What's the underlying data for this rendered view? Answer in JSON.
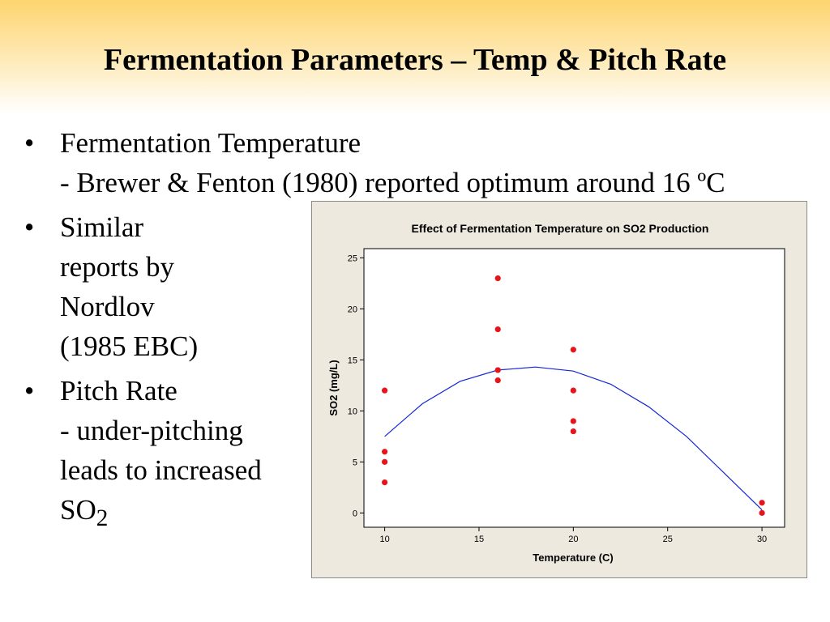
{
  "slide": {
    "title": "Fermentation Parameters – Temp & Pitch Rate",
    "bullet_symbol": "•",
    "bullets": [
      {
        "lines": [
          "Fermentation Temperature",
          "- Brewer & Fenton (1980) reported optimum around 16 ºC"
        ]
      },
      {
        "lines": [
          "Similar",
          "reports by",
          "Nordlov",
          "(1985 EBC)"
        ]
      },
      {
        "lines": [
          "Pitch Rate",
          "- under-pitching",
          "leads to increased"
        ],
        "last_line_main": "SO",
        "last_line_sub": "2"
      }
    ]
  },
  "colors": {
    "title_gradient_top": "#fdd46e",
    "chart_background": "#ede9df",
    "plot_background": "#ffffff",
    "points": "#e8141c",
    "fit_line": "#1428d8"
  },
  "chart_data": {
    "type": "scatter",
    "title": "Effect of Fermentation Temperature on SO2 Production",
    "xlabel": "Temperature (C)",
    "ylabel": "SO2 (mg/L)",
    "xlim": [
      8.9,
      31.2
    ],
    "ylim": [
      -1.4,
      25.9
    ],
    "xticks": [
      10,
      15,
      20,
      25,
      30
    ],
    "yticks": [
      0,
      5,
      10,
      15,
      20,
      25
    ],
    "grid": false,
    "points": [
      {
        "x": 10,
        "y": 12
      },
      {
        "x": 10,
        "y": 6
      },
      {
        "x": 10,
        "y": 5
      },
      {
        "x": 10,
        "y": 3
      },
      {
        "x": 16,
        "y": 23
      },
      {
        "x": 16,
        "y": 18
      },
      {
        "x": 16,
        "y": 14
      },
      {
        "x": 16,
        "y": 13
      },
      {
        "x": 20,
        "y": 16
      },
      {
        "x": 20,
        "y": 12
      },
      {
        "x": 20,
        "y": 9
      },
      {
        "x": 20,
        "y": 8
      },
      {
        "x": 30,
        "y": 1
      },
      {
        "x": 30,
        "y": 0
      }
    ],
    "fit_line": {
      "type": "quadratic",
      "points": [
        {
          "x": 10,
          "y": 7.5
        },
        {
          "x": 12,
          "y": 10.7
        },
        {
          "x": 14,
          "y": 12.9
        },
        {
          "x": 16,
          "y": 14.0
        },
        {
          "x": 18,
          "y": 14.3
        },
        {
          "x": 20,
          "y": 13.9
        },
        {
          "x": 22,
          "y": 12.6
        },
        {
          "x": 24,
          "y": 10.4
        },
        {
          "x": 26,
          "y": 7.5
        },
        {
          "x": 28,
          "y": 3.9
        },
        {
          "x": 30,
          "y": 0.3
        }
      ]
    }
  }
}
